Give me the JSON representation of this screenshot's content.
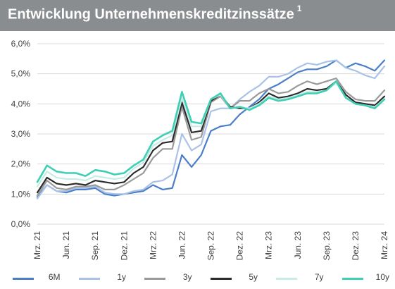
{
  "header": {
    "title": "Entwicklung Unternehmenskreditzinssätze",
    "footnote": "1"
  },
  "chart_data": {
    "type": "line",
    "title": "Entwicklung Unternehmenskreditzinssätze",
    "xlabel": "",
    "ylabel": "",
    "ylim": [
      0,
      6
    ],
    "yticks": [
      "0,0%",
      "1,0%",
      "2,0%",
      "3,0%",
      "4,0%",
      "5,0%",
      "6,0%"
    ],
    "grid": true,
    "legend_position": "bottom",
    "x": [
      "2021-03",
      "2021-04",
      "2021-05",
      "2021-06",
      "2021-07",
      "2021-08",
      "2021-09",
      "2021-10",
      "2021-11",
      "2021-12",
      "2022-01",
      "2022-02",
      "2022-03",
      "2022-04",
      "2022-05",
      "2022-06",
      "2022-07",
      "2022-08",
      "2022-09",
      "2022-10",
      "2022-11",
      "2022-12",
      "2023-01",
      "2023-02",
      "2023-03",
      "2023-04",
      "2023-05",
      "2023-06",
      "2023-07",
      "2023-08",
      "2023-09",
      "2023-10",
      "2023-11",
      "2023-12",
      "2024-01",
      "2024-02",
      "2024-03"
    ],
    "x_tick_labels": [
      "Mrz. 21",
      "Jun. 21",
      "Sep. 21",
      "Dez. 21",
      "Mrz. 22",
      "Jun. 22",
      "Sep. 22",
      "Dez. 22",
      "Mrz. 23",
      "Jun. 23",
      "Sep. 23",
      "Dez. 23",
      "Mrz. 24"
    ],
    "series": [
      {
        "name": "6M",
        "color": "#4a7ec7",
        "width": 2.2,
        "values": [
          0.9,
          1.3,
          1.1,
          1.05,
          1.15,
          1.15,
          1.2,
          1.0,
          0.95,
          1.0,
          1.05,
          1.1,
          1.3,
          1.15,
          1.2,
          2.3,
          1.9,
          2.3,
          3.1,
          3.25,
          3.3,
          3.65,
          3.9,
          4.15,
          4.5,
          4.65,
          4.85,
          5.05,
          5.15,
          5.15,
          5.25,
          5.45,
          5.2,
          5.35,
          5.25,
          5.1,
          5.45
        ]
      },
      {
        "name": "1y",
        "color": "#a9c2e6",
        "width": 2.2,
        "values": [
          0.85,
          1.3,
          1.1,
          1.1,
          1.2,
          1.2,
          1.25,
          1.05,
          1.0,
          1.0,
          1.1,
          1.15,
          1.4,
          1.45,
          1.65,
          3.0,
          2.45,
          2.65,
          3.75,
          3.85,
          3.85,
          4.15,
          4.4,
          4.6,
          4.9,
          4.9,
          5.0,
          5.2,
          5.35,
          5.3,
          5.4,
          5.45,
          5.2,
          5.1,
          4.95,
          4.85,
          5.25
        ]
      },
      {
        "name": "3y",
        "color": "#9a9a9a",
        "width": 2.2,
        "values": [
          0.95,
          1.45,
          1.2,
          1.15,
          1.25,
          1.25,
          1.3,
          1.15,
          1.15,
          1.3,
          1.5,
          1.7,
          2.2,
          2.5,
          2.5,
          3.9,
          2.8,
          2.9,
          4.05,
          4.25,
          3.85,
          4.1,
          4.1,
          4.35,
          4.5,
          4.35,
          4.4,
          4.6,
          4.75,
          4.65,
          4.75,
          4.85,
          4.4,
          4.15,
          4.1,
          4.1,
          4.45
        ]
      },
      {
        "name": "5y",
        "color": "#2b2b2b",
        "width": 2.2,
        "values": [
          1.05,
          1.55,
          1.35,
          1.3,
          1.35,
          1.3,
          1.45,
          1.4,
          1.35,
          1.4,
          1.7,
          1.9,
          2.45,
          2.7,
          2.75,
          4.05,
          3.05,
          3.1,
          4.1,
          4.3,
          3.9,
          3.85,
          3.85,
          4.05,
          4.35,
          4.2,
          4.25,
          4.35,
          4.5,
          4.45,
          4.5,
          4.75,
          4.3,
          4.05,
          4.0,
          3.95,
          4.25
        ]
      },
      {
        "name": "7y",
        "color": "#c7ece6",
        "width": 2.2,
        "values": [
          1.25,
          1.75,
          1.55,
          1.5,
          1.5,
          1.45,
          1.6,
          1.55,
          1.5,
          1.55,
          1.85,
          2.05,
          2.6,
          2.8,
          2.95,
          4.2,
          3.25,
          3.25,
          4.15,
          4.3,
          3.85,
          3.9,
          3.85,
          4.0,
          4.25,
          4.15,
          4.2,
          4.3,
          4.4,
          4.4,
          4.45,
          4.7,
          4.2,
          4.0,
          3.95,
          3.9,
          4.15
        ]
      },
      {
        "name": "10y",
        "color": "#3fcfb4",
        "width": 2.6,
        "values": [
          1.4,
          1.95,
          1.75,
          1.7,
          1.7,
          1.6,
          1.8,
          1.75,
          1.65,
          1.7,
          1.95,
          2.15,
          2.75,
          2.95,
          3.1,
          4.4,
          3.4,
          3.35,
          4.15,
          4.35,
          3.85,
          3.9,
          3.8,
          3.95,
          4.2,
          4.1,
          4.15,
          4.25,
          4.35,
          4.35,
          4.45,
          4.75,
          4.2,
          4.0,
          3.95,
          3.85,
          4.15
        ]
      }
    ]
  }
}
